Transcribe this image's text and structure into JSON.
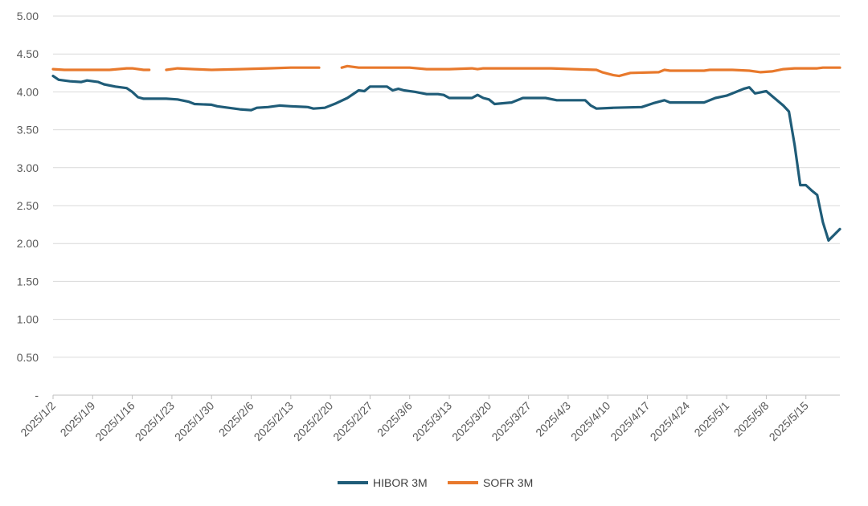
{
  "chart_data": {
    "type": "line",
    "title": "",
    "xlabel": "",
    "ylabel": "",
    "ylim": [
      0,
      5
    ],
    "yticks": [
      "-",
      "0.50",
      "1.00",
      "1.50",
      "2.00",
      "2.50",
      "3.00",
      "3.50",
      "4.00",
      "4.50",
      "5.00"
    ],
    "xticks": [
      "2025/1/2",
      "2025/1/9",
      "2025/1/16",
      "2025/1/23",
      "2025/1/30",
      "2025/2/6",
      "2025/2/13",
      "2025/2/20",
      "2025/2/27",
      "2025/3/6",
      "2025/3/13",
      "2025/3/20",
      "2025/3/27",
      "2025/4/3",
      "2025/4/10",
      "2025/4/17",
      "2025/4/24",
      "2025/5/1",
      "2025/5/8",
      "2025/5/15"
    ],
    "x_start": "2025/1/2",
    "x_days": 136,
    "legend_position": "bottom",
    "series": [
      {
        "name": "HIBOR 3M",
        "color": "#1f5c78",
        "points": [
          [
            0,
            4.21
          ],
          [
            1,
            4.16
          ],
          [
            3,
            4.14
          ],
          [
            5,
            4.13
          ],
          [
            6,
            4.15
          ],
          [
            8,
            4.13
          ],
          [
            9,
            4.1
          ],
          [
            11,
            4.07
          ],
          [
            13,
            4.05
          ],
          [
            14,
            4.0
          ],
          [
            15,
            3.93
          ],
          [
            16,
            3.91
          ],
          [
            20,
            3.91
          ],
          [
            22,
            3.9
          ],
          [
            24,
            3.87
          ],
          [
            25,
            3.84
          ],
          [
            28,
            3.83
          ],
          [
            29,
            3.81
          ],
          [
            31,
            3.79
          ],
          [
            33,
            3.77
          ],
          [
            35,
            3.76
          ],
          [
            36,
            3.79
          ],
          [
            38,
            3.8
          ],
          [
            40,
            3.82
          ],
          [
            42,
            3.81
          ],
          [
            45,
            3.8
          ],
          [
            46,
            3.78
          ],
          [
            48,
            3.79
          ],
          [
            50,
            3.85
          ],
          [
            52,
            3.92
          ],
          [
            54,
            4.02
          ],
          [
            55,
            4.01
          ],
          [
            56,
            4.07
          ],
          [
            59,
            4.07
          ],
          [
            60,
            4.02
          ],
          [
            61,
            4.04
          ],
          [
            62,
            4.02
          ],
          [
            64,
            4.0
          ],
          [
            66,
            3.97
          ],
          [
            68,
            3.97
          ],
          [
            69,
            3.96
          ],
          [
            70,
            3.92
          ],
          [
            74,
            3.92
          ],
          [
            75,
            3.96
          ],
          [
            76,
            3.92
          ],
          [
            77,
            3.9
          ],
          [
            78,
            3.84
          ],
          [
            81,
            3.86
          ],
          [
            83,
            3.92
          ],
          [
            87,
            3.92
          ],
          [
            89,
            3.89
          ],
          [
            90,
            3.89
          ],
          [
            94,
            3.89
          ],
          [
            95,
            3.82
          ],
          [
            96,
            3.78
          ],
          [
            99,
            3.79
          ],
          [
            104,
            3.8
          ],
          [
            106,
            3.85
          ],
          [
            108,
            3.89
          ],
          [
            109,
            3.86
          ],
          [
            113,
            3.86
          ],
          [
            115,
            3.86
          ],
          [
            117,
            3.92
          ],
          [
            119,
            3.95
          ],
          [
            122,
            4.04
          ],
          [
            123,
            4.06
          ],
          [
            124,
            3.98
          ],
          [
            126,
            4.01
          ],
          [
            129,
            3.82
          ],
          [
            130,
            3.74
          ],
          [
            131,
            3.3
          ],
          [
            132,
            2.77
          ],
          [
            133,
            2.77
          ],
          [
            134,
            2.7
          ],
          [
            135,
            2.64
          ],
          [
            136,
            2.28
          ],
          [
            137,
            2.04
          ],
          [
            139,
            2.19
          ]
        ],
        "gaps": []
      },
      {
        "name": "SOFR 3M",
        "color": "#e8792c",
        "points": [
          [
            0,
            4.3
          ],
          [
            2,
            4.29
          ],
          [
            6,
            4.29
          ],
          [
            10,
            4.29
          ],
          [
            13,
            4.31
          ],
          [
            14,
            4.31
          ],
          [
            16,
            4.29
          ],
          [
            17,
            4.29
          ],
          [
            20,
            4.29
          ],
          [
            22,
            4.31
          ],
          [
            25,
            4.3
          ],
          [
            28,
            4.29
          ],
          [
            33,
            4.3
          ],
          [
            38,
            4.31
          ],
          [
            42,
            4.32
          ],
          [
            45,
            4.32
          ],
          [
            47,
            4.32
          ],
          [
            51,
            4.32
          ],
          [
            52,
            4.34
          ],
          [
            54,
            4.32
          ],
          [
            59,
            4.32
          ],
          [
            63,
            4.32
          ],
          [
            66,
            4.3
          ],
          [
            70,
            4.3
          ],
          [
            74,
            4.31
          ],
          [
            75,
            4.3
          ],
          [
            76,
            4.31
          ],
          [
            82,
            4.31
          ],
          [
            88,
            4.31
          ],
          [
            92,
            4.3
          ],
          [
            96,
            4.29
          ],
          [
            97,
            4.26
          ],
          [
            99,
            4.22
          ],
          [
            100,
            4.21
          ],
          [
            102,
            4.25
          ],
          [
            107,
            4.26
          ],
          [
            108,
            4.29
          ],
          [
            109,
            4.28
          ],
          [
            113,
            4.28
          ],
          [
            115,
            4.28
          ],
          [
            116,
            4.29
          ],
          [
            120,
            4.29
          ],
          [
            123,
            4.28
          ],
          [
            125,
            4.26
          ],
          [
            127,
            4.27
          ],
          [
            129,
            4.3
          ],
          [
            131,
            4.31
          ],
          [
            135,
            4.31
          ],
          [
            136,
            4.32
          ],
          [
            139,
            4.32
          ]
        ],
        "gaps": [
          17,
          47
        ]
      }
    ]
  }
}
